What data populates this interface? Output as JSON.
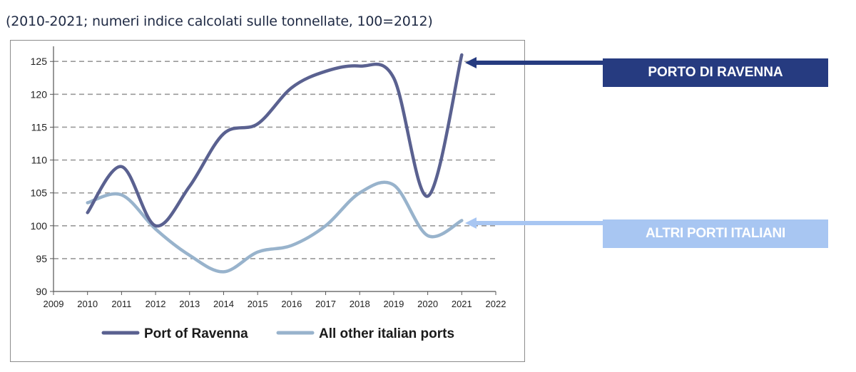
{
  "subtitle": "(2010-2021; numeri indice calcolati sulle tonnellate, 100=2012)",
  "colors": {
    "ravenna": "#5a6190",
    "others": "#98b3cc",
    "callout_ravenna_bg": "#263b80",
    "callout_altri_bg": "#a8c6f2",
    "arrow_ravenna": "#263b80",
    "arrow_altri": "#a8c6f2",
    "grid": "#9a9a9a",
    "axis": "#555555"
  },
  "callouts": {
    "ravenna": "PORTO DI RAVENNA",
    "altri": "ALTRI PORTI ITALIANI"
  },
  "chart_data": {
    "type": "line",
    "title": "",
    "xlabel": "",
    "ylabel": "",
    "xlim": [
      2009,
      2022
    ],
    "ylim": [
      90,
      126
    ],
    "x_ticks": [
      2009,
      2010,
      2011,
      2012,
      2013,
      2014,
      2015,
      2016,
      2017,
      2018,
      2019,
      2020,
      2021,
      2022
    ],
    "y_ticks": [
      90,
      95,
      100,
      105,
      110,
      115,
      120,
      125
    ],
    "grid": true,
    "legend_position": "bottom",
    "series": [
      {
        "name": "Port of Ravenna",
        "color": "#5a6190",
        "x": [
          2010,
          2011,
          2012,
          2013,
          2014,
          2015,
          2016,
          2017,
          2018,
          2019,
          2020,
          2021
        ],
        "values": [
          102,
          109,
          100,
          106,
          114,
          115.5,
          121,
          123.5,
          124.3,
          122.5,
          104.5,
          126
        ]
      },
      {
        "name": "All other italian ports",
        "color": "#98b3cc",
        "x": [
          2010,
          2011,
          2012,
          2013,
          2014,
          2015,
          2016,
          2017,
          2018,
          2019,
          2020,
          2021
        ],
        "values": [
          103.5,
          104.7,
          99.5,
          95.5,
          93,
          96,
          97,
          100,
          105,
          106.2,
          98.5,
          100.8
        ]
      }
    ]
  }
}
